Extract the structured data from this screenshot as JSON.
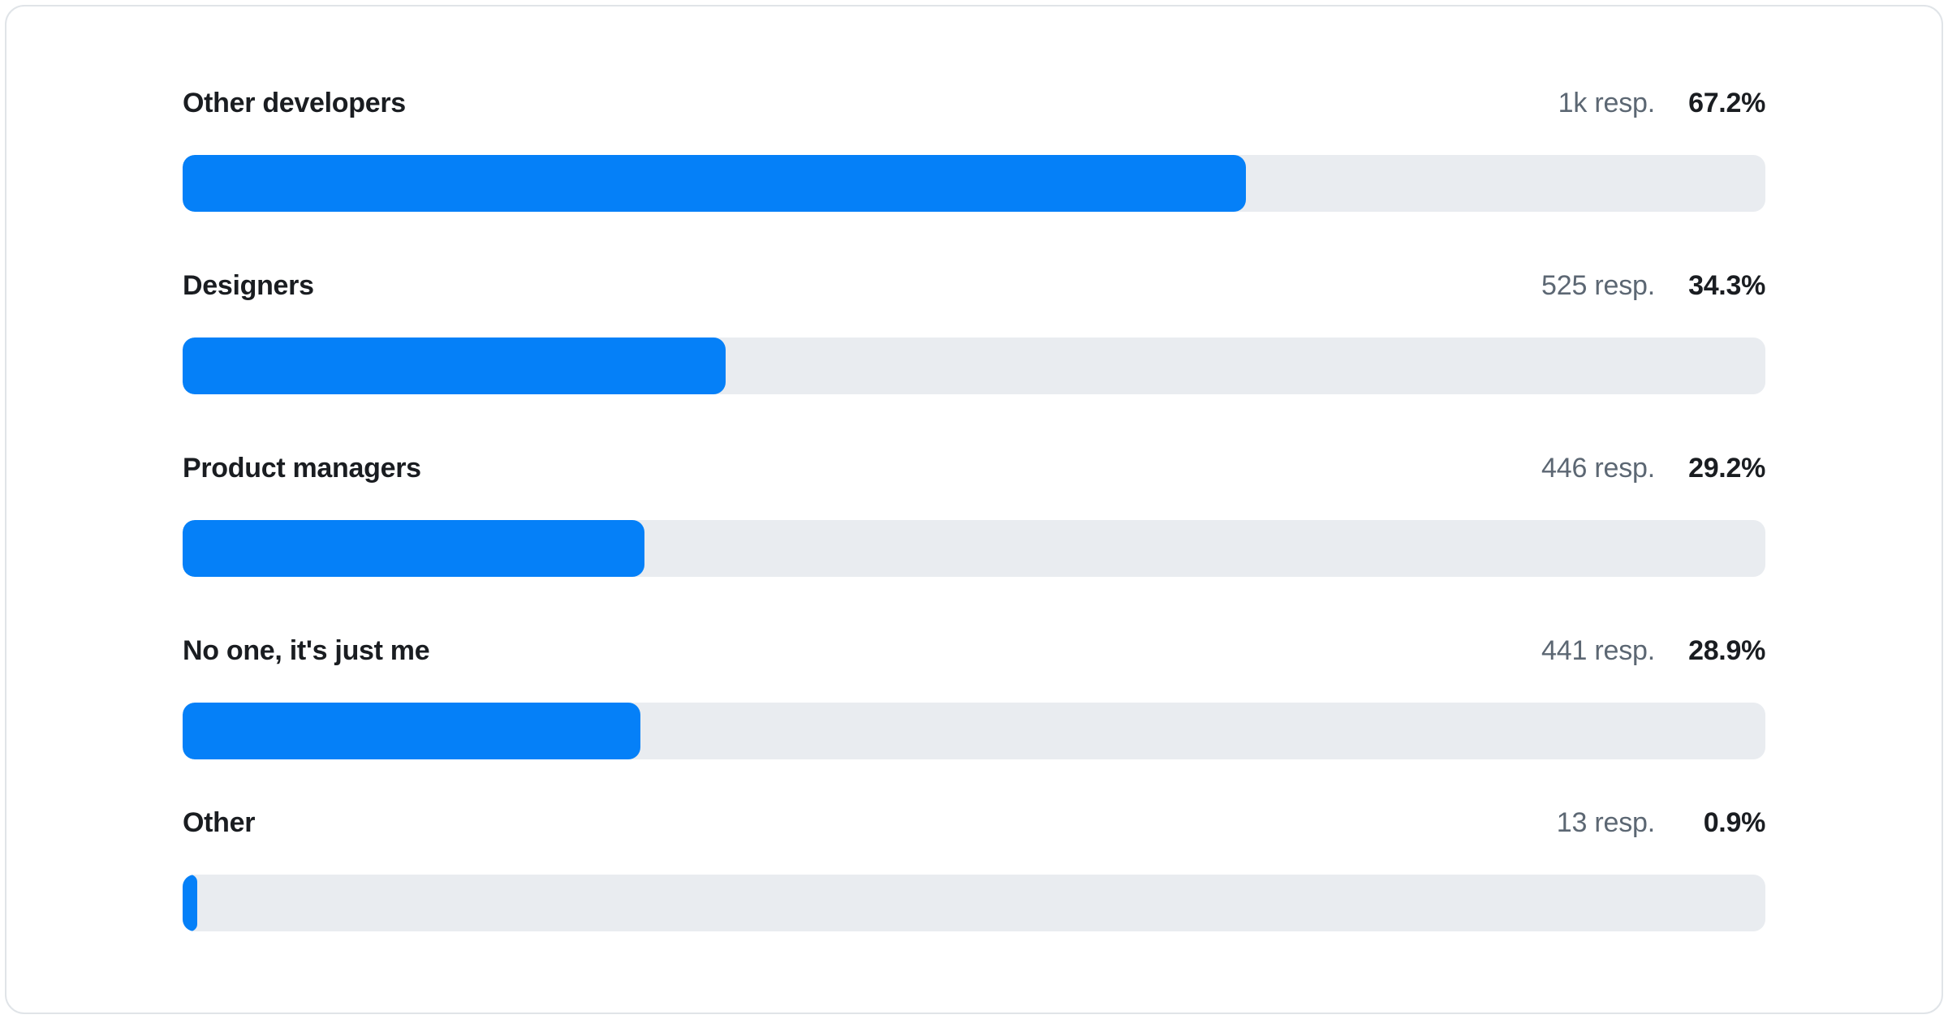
{
  "chart_data": {
    "type": "bar",
    "orientation": "horizontal",
    "title": "",
    "xlabel": "",
    "ylabel": "",
    "xlim": [
      0,
      100
    ],
    "unit": "%",
    "grid": false,
    "legend": "none",
    "categories": [
      "Other developers",
      "Designers",
      "Product managers",
      "No one, it's just me",
      "Other"
    ],
    "values": [
      67.2,
      34.3,
      29.2,
      28.9,
      0.9
    ],
    "rows": [
      {
        "label": "Other developers",
        "respondents": "1k resp.",
        "percent_label": "67.2%",
        "value": 67.2
      },
      {
        "label": "Designers",
        "respondents": "525 resp.",
        "percent_label": "34.3%",
        "value": 34.3
      },
      {
        "label": "Product managers",
        "respondents": "446 resp.",
        "percent_label": "29.2%",
        "value": 29.2
      },
      {
        "label": "No one, it's just me",
        "respondents": "441 resp.",
        "percent_label": "28.9%",
        "value": 28.9
      },
      {
        "label": "Other",
        "respondents": "13 resp.",
        "percent_label": "0.9%",
        "value": 0.9
      }
    ],
    "colors": {
      "bar_fill": "#0580f8",
      "bar_track": "#e9ecf0",
      "label_text": "#1a1d21",
      "respondents_text": "#5c6773",
      "card_border": "#e0e4e8",
      "card_background": "#ffffff"
    }
  }
}
